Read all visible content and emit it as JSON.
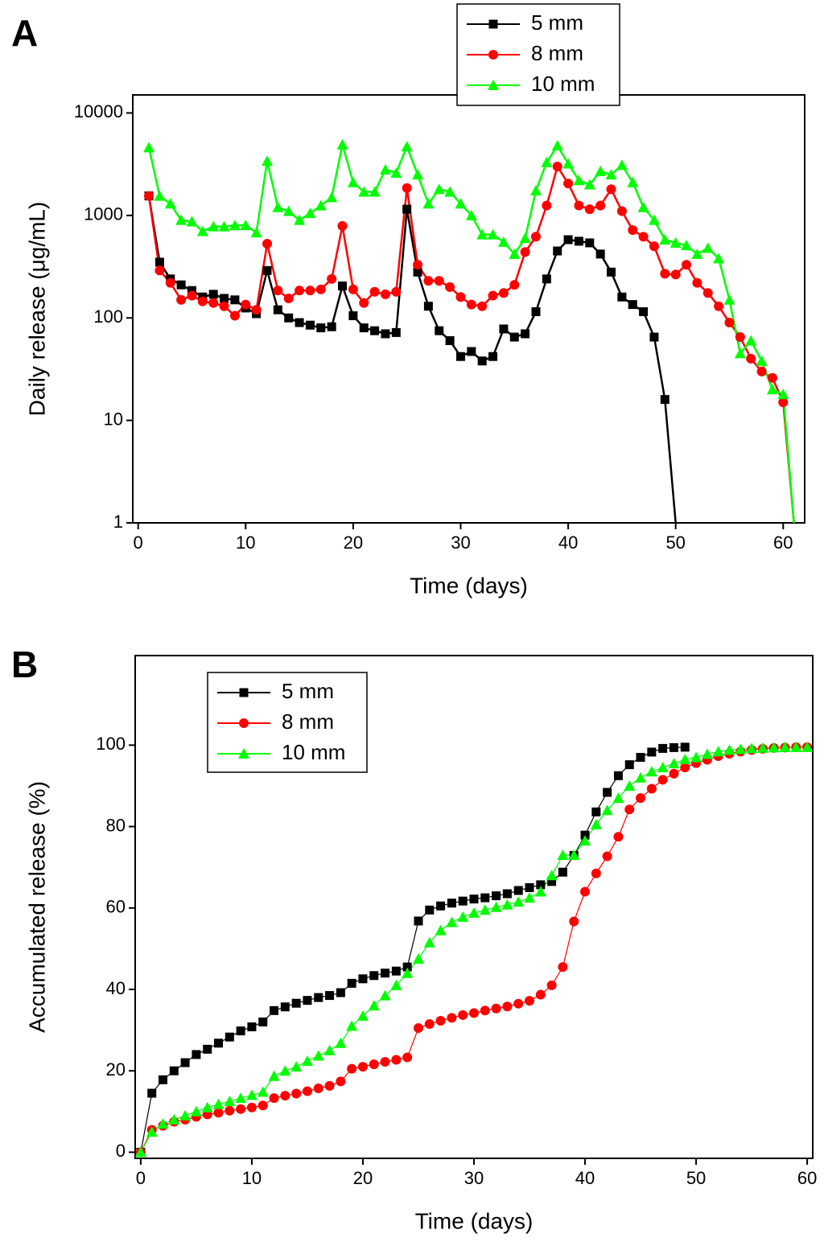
{
  "chart_data": [
    {
      "type": "line",
      "panel_label": "A",
      "x_label": "Time (days)",
      "y_label": "Daily release (μg/mL)",
      "log_scale": true,
      "legend": "top-center",
      "xlim": [
        -0.5,
        62
      ],
      "xticks": [
        0,
        10,
        20,
        30,
        40,
        50,
        60
      ],
      "ylim": [
        1,
        15000
      ],
      "yticks": [
        1,
        10,
        100,
        1000,
        10000
      ],
      "series": [
        {
          "name": "5 mm",
          "color": "#000000",
          "marker": "square",
          "x": [
            1,
            2,
            3,
            4,
            5,
            6,
            7,
            8,
            9,
            10,
            11,
            12,
            13,
            14,
            15,
            16,
            17,
            18,
            19,
            20,
            21,
            22,
            23,
            24,
            25,
            26,
            27,
            28,
            29,
            30,
            31,
            32,
            33,
            34,
            35,
            36,
            37,
            38,
            39,
            40,
            41,
            42,
            43,
            44,
            45,
            46,
            47,
            48,
            49,
            50
          ],
          "values": [
            1550,
            350,
            240,
            210,
            185,
            160,
            170,
            155,
            150,
            125,
            110,
            290,
            120,
            100,
            90,
            85,
            80,
            82,
            205,
            105,
            80,
            75,
            70,
            72,
            1150,
            280,
            130,
            75,
            60,
            42,
            47,
            38,
            42,
            78,
            65,
            70,
            115,
            240,
            450,
            580,
            560,
            540,
            420,
            280,
            160,
            135,
            115,
            65,
            16,
            1
          ]
        },
        {
          "name": "8 mm",
          "color": "#ff0000",
          "marker": "circle",
          "x": [
            1,
            2,
            3,
            4,
            5,
            6,
            7,
            8,
            9,
            10,
            11,
            12,
            13,
            14,
            15,
            16,
            17,
            18,
            19,
            20,
            21,
            22,
            23,
            24,
            25,
            26,
            27,
            28,
            29,
            30,
            31,
            32,
            33,
            34,
            35,
            36,
            37,
            38,
            39,
            40,
            41,
            42,
            43,
            44,
            45,
            46,
            47,
            48,
            49,
            50,
            51,
            52,
            53,
            54,
            55,
            56,
            57,
            58,
            59,
            60,
            61
          ],
          "values": [
            1550,
            290,
            220,
            150,
            165,
            145,
            140,
            130,
            105,
            135,
            120,
            530,
            185,
            155,
            185,
            185,
            190,
            240,
            790,
            190,
            140,
            180,
            170,
            180,
            1850,
            330,
            230,
            230,
            200,
            160,
            135,
            130,
            165,
            175,
            210,
            440,
            620,
            1250,
            3000,
            2050,
            1250,
            1150,
            1250,
            1800,
            1100,
            720,
            620,
            500,
            270,
            265,
            330,
            220,
            175,
            130,
            90,
            65,
            40,
            30,
            26,
            15,
            1
          ]
        },
        {
          "name": "10 mm",
          "color": "#00ff00",
          "marker": "triangle",
          "x": [
            1,
            2,
            3,
            4,
            5,
            6,
            7,
            8,
            9,
            10,
            11,
            12,
            13,
            14,
            15,
            16,
            17,
            18,
            19,
            20,
            21,
            22,
            23,
            24,
            25,
            26,
            27,
            28,
            29,
            30,
            31,
            32,
            33,
            34,
            35,
            36,
            37,
            38,
            39,
            40,
            41,
            42,
            43,
            44,
            45,
            46,
            47,
            48,
            49,
            50,
            51,
            52,
            53,
            54,
            55,
            56,
            57,
            58,
            59,
            60,
            61
          ],
          "values": [
            4600,
            1550,
            1300,
            900,
            870,
            700,
            780,
            780,
            800,
            800,
            680,
            3400,
            1200,
            1100,
            900,
            1050,
            1250,
            1500,
            4900,
            2100,
            1700,
            1700,
            2800,
            2600,
            4700,
            2500,
            1300,
            1800,
            1700,
            1300,
            1000,
            650,
            650,
            550,
            420,
            600,
            1750,
            3300,
            4800,
            3200,
            2200,
            2000,
            2700,
            2500,
            3100,
            2100,
            1200,
            900,
            580,
            540,
            510,
            420,
            480,
            380,
            150,
            45,
            60,
            38,
            20,
            18,
            1
          ]
        }
      ]
    },
    {
      "type": "line",
      "panel_label": "B",
      "x_label": "Time (days)",
      "y_label": "Accumulated release (%)",
      "log_scale": false,
      "legend": "top-left",
      "xlim": [
        -0.5,
        60.5
      ],
      "xticks": [
        0,
        10,
        20,
        30,
        40,
        50,
        60
      ],
      "ylim": [
        -1.5,
        122
      ],
      "yticks": [
        0,
        20,
        40,
        60,
        80,
        100
      ],
      "series": [
        {
          "name": "5 mm",
          "color": "#000000",
          "marker": "square",
          "x": [
            0,
            1,
            2,
            3,
            4,
            5,
            6,
            7,
            8,
            9,
            10,
            11,
            12,
            13,
            14,
            15,
            16,
            17,
            18,
            19,
            20,
            21,
            22,
            23,
            24,
            25,
            26,
            27,
            28,
            29,
            30,
            31,
            32,
            33,
            34,
            35,
            36,
            37,
            38,
            39,
            40,
            41,
            42,
            43,
            44,
            45,
            46,
            47,
            48,
            49
          ],
          "values": [
            0,
            14.5,
            17.8,
            20,
            22,
            24,
            25.3,
            26.8,
            28.3,
            29.8,
            30.8,
            32,
            34.8,
            35.7,
            36.6,
            37.3,
            38,
            38.5,
            39.2,
            41.5,
            42.6,
            43.4,
            44,
            44.5,
            45.5,
            56.8,
            59.5,
            60.5,
            61.2,
            61.7,
            62.2,
            62.5,
            63,
            63.5,
            64.3,
            65,
            65.7,
            66.5,
            68.8,
            72.9,
            77.9,
            83.6,
            88.4,
            92.5,
            95.2,
            97,
            98.3,
            99.2,
            99.4,
            99.5
          ]
        },
        {
          "name": "8 mm",
          "color": "#ff0000",
          "marker": "circle",
          "x": [
            0,
            1,
            2,
            3,
            4,
            5,
            6,
            7,
            8,
            9,
            10,
            11,
            12,
            13,
            14,
            15,
            16,
            17,
            18,
            19,
            20,
            21,
            22,
            23,
            24,
            25,
            26,
            27,
            28,
            29,
            30,
            31,
            32,
            33,
            34,
            35,
            36,
            37,
            38,
            39,
            40,
            41,
            42,
            43,
            44,
            45,
            46,
            47,
            48,
            49,
            50,
            51,
            52,
            53,
            54,
            55,
            56,
            57,
            58,
            59,
            60
          ],
          "values": [
            0,
            5.5,
            6.5,
            7.5,
            8,
            8.7,
            9.3,
            9.7,
            10.2,
            10.6,
            11,
            11.5,
            13.3,
            13.9,
            14.4,
            15,
            15.7,
            16.3,
            17.4,
            20.5,
            21,
            21.6,
            22.2,
            22.7,
            23.3,
            30.5,
            31.5,
            32.3,
            33,
            33.7,
            34.2,
            34.8,
            35.3,
            35.8,
            36.5,
            37.2,
            38.7,
            41,
            45.5,
            56.7,
            64,
            68.5,
            72.7,
            77.5,
            84.2,
            87,
            89.3,
            91.5,
            93,
            94.5,
            95.6,
            96.4,
            97.3,
            97.9,
            98.4,
            98.8,
            99.1,
            99.3,
            99.4,
            99.5,
            99.5
          ]
        },
        {
          "name": "10 mm",
          "color": "#00ff00",
          "marker": "triangle",
          "x": [
            0,
            1,
            2,
            3,
            4,
            5,
            6,
            7,
            8,
            9,
            10,
            11,
            12,
            13,
            14,
            15,
            16,
            17,
            18,
            19,
            20,
            21,
            22,
            23,
            24,
            25,
            26,
            27,
            28,
            29,
            30,
            31,
            32,
            33,
            34,
            35,
            36,
            37,
            38,
            39,
            40,
            41,
            42,
            43,
            44,
            45,
            46,
            47,
            48,
            49,
            50,
            51,
            52,
            53,
            54,
            55,
            56,
            57,
            58,
            59,
            60
          ],
          "values": [
            0,
            5,
            7,
            8,
            9,
            10,
            11,
            11.8,
            12.5,
            13.3,
            14,
            14.8,
            18.7,
            20,
            21,
            22.4,
            23.7,
            25,
            26.8,
            31,
            33.5,
            36,
            38.5,
            41,
            44,
            47.5,
            51.5,
            54.5,
            56.5,
            57.8,
            58.8,
            59.5,
            60.2,
            60.8,
            61.5,
            62.5,
            64,
            68,
            73,
            73,
            76.5,
            80.5,
            84,
            87,
            90,
            92,
            93.5,
            94.5,
            95.5,
            96.5,
            97,
            97.8,
            98.4,
            98.8,
            99,
            99.2,
            99.3,
            99.4,
            99.5,
            99.5,
            99.5
          ]
        }
      ]
    }
  ]
}
